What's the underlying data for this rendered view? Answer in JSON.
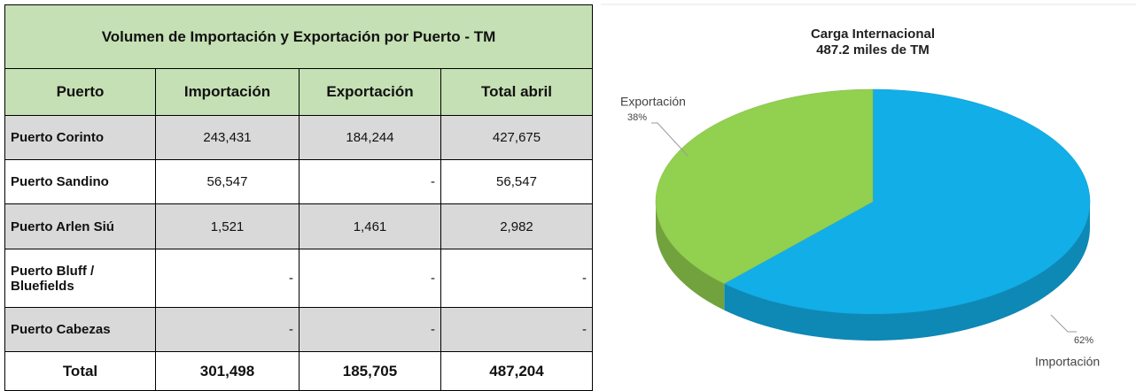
{
  "table": {
    "title": "Volumen de Importación y Exportación por Puerto - TM",
    "header": [
      "Puerto",
      "Importación",
      "Exportación",
      "Total abril"
    ],
    "rows": [
      [
        "Puerto Corinto",
        "243,431",
        "184,244",
        "427,675"
      ],
      [
        "Puerto Sandino",
        "56,547",
        "-",
        "56,547"
      ],
      [
        "Puerto Arlen Siú",
        "1,521",
        "1,461",
        "2,982"
      ],
      [
        "Puerto Bluff / Bluefields",
        "-",
        "-",
        "-"
      ],
      [
        "Puerto Cabezas",
        "-",
        "-",
        "-"
      ]
    ],
    "total": [
      "Total",
      "301,498",
      "185,705",
      "487,204"
    ]
  },
  "chart_data": {
    "type": "pie",
    "title": "Carga Internacional",
    "subtitle": "487.2 miles de TM",
    "categories": [
      "Importación",
      "Exportación"
    ],
    "values": [
      62,
      38
    ],
    "value_labels": [
      "62%",
      "38%"
    ],
    "colors": [
      "#12aee8",
      "#92d050"
    ]
  }
}
